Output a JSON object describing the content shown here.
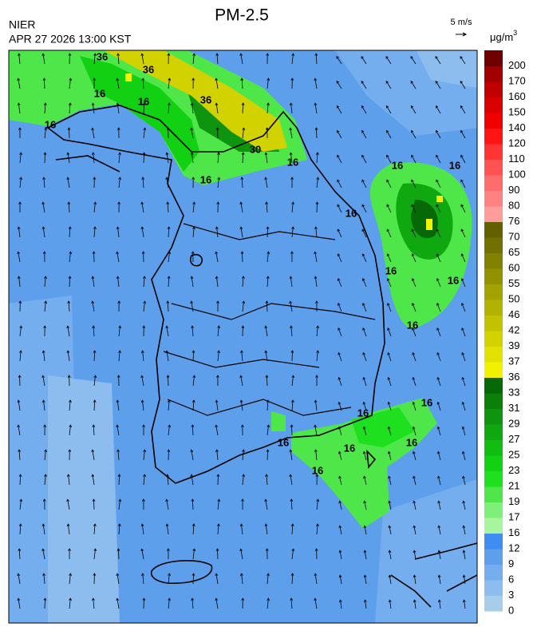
{
  "header": {
    "title": "PM-2.5",
    "agency": "NIER",
    "timestamp": "APR 27 2026 13:00 KST"
  },
  "wind_legend": {
    "label": "5 m/s"
  },
  "colorbar": {
    "unit": "μg/m",
    "unit_sup": "3",
    "levels": [
      0,
      3,
      6,
      9,
      12,
      16,
      17,
      19,
      21,
      23,
      25,
      27,
      29,
      31,
      33,
      36,
      37,
      39,
      42,
      46,
      50,
      55,
      60,
      65,
      70,
      76,
      80,
      90,
      100,
      110,
      120,
      140,
      150,
      160,
      170,
      200
    ],
    "colors": [
      "#a6cdea",
      "#8dbdee",
      "#74aeee",
      "#5e9fec",
      "#3f8cf2",
      "#a8f5a0",
      "#7eef78",
      "#4fe64a",
      "#1ee01e",
      "#12d012",
      "#10bd10",
      "#10a810",
      "#0e940e",
      "#0a800a",
      "#066806",
      "#f2f200",
      "#e2e200",
      "#d2d200",
      "#c2c200",
      "#b2b200",
      "#a2a200",
      "#929200",
      "#828200",
      "#727000",
      "#626000",
      "#ff9c9c",
      "#ff8282",
      "#ff6c6c",
      "#ff5252",
      "#ff3434",
      "#ff1414",
      "#f00000",
      "#d80000",
      "#c00000",
      "#a00000",
      "#700000"
    ]
  },
  "map": {
    "contour_labels": [
      "36",
      "36",
      "36",
      "16",
      "16",
      "16",
      "30",
      "16",
      "16",
      "16",
      "16",
      "16",
      "16",
      "16",
      "16",
      "16",
      "16",
      "16",
      "16",
      "16",
      "16"
    ]
  }
}
